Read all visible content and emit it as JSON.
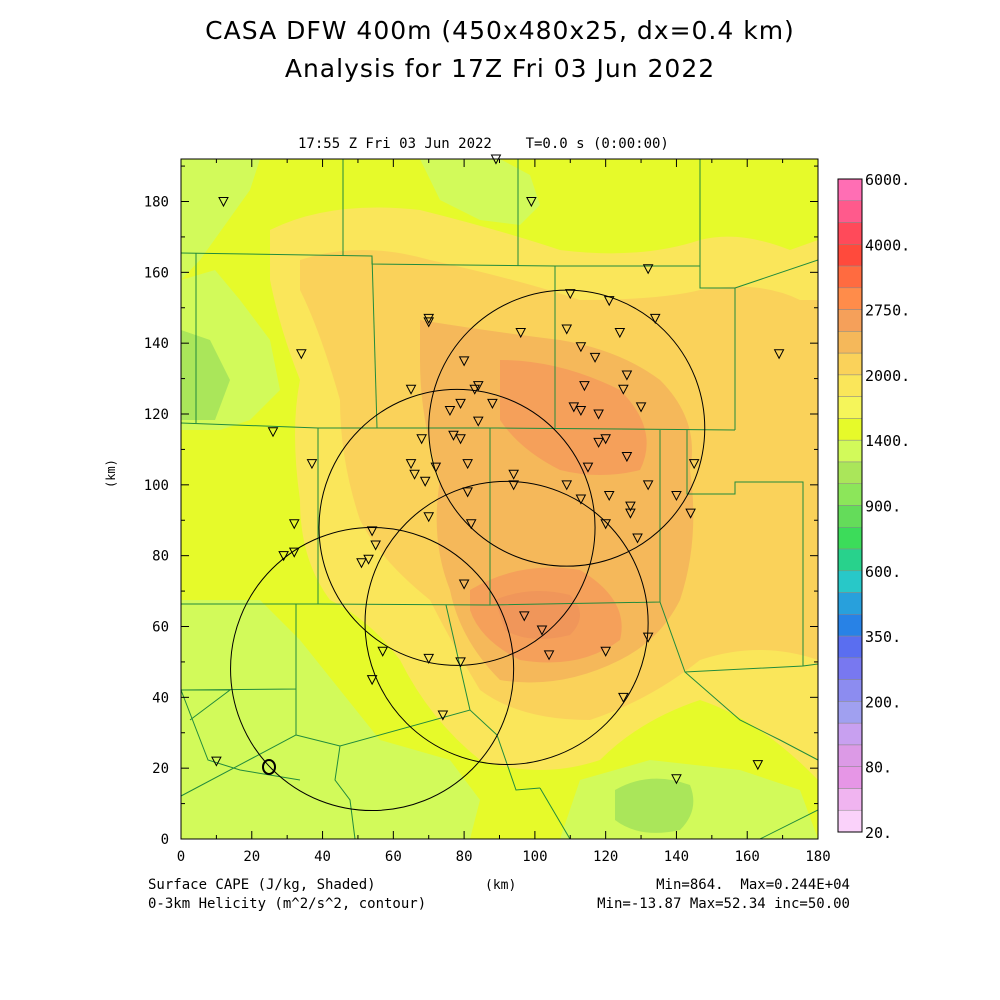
{
  "header": {
    "title_line1": "CASA DFW 400m (450x480x25, dx=0.4 km)",
    "title_line2": "Analysis for 17Z Fri 03 Jun 2022",
    "subtitle": "17:55 Z Fri 03 Jun 2022    T=0.0 s (0:00:00)"
  },
  "axes": {
    "x_ticks": [
      "0",
      "20",
      "40",
      "60",
      "80",
      "100",
      "120",
      "140",
      "160",
      "180"
    ],
    "y_ticks": [
      "0",
      "20",
      "40",
      "60",
      "80",
      "100",
      "120",
      "140",
      "160",
      "180"
    ],
    "x_unit": "(km)",
    "y_unit": "(km)",
    "xlim": [
      0,
      180
    ],
    "ylim": [
      0,
      192
    ]
  },
  "colorbar": {
    "labels": [
      "6000.",
      "4000.",
      "2750.",
      "2000.",
      "1400.",
      "900.",
      "600.",
      "350.",
      "200.",
      "80.",
      "20."
    ],
    "colors": [
      "#ff6eb4",
      "#ff5a8c",
      "#ff4a5a",
      "#ff4a3c",
      "#ff6b40",
      "#ff8c4a",
      "#f5a05a",
      "#f5b85a",
      "#fad25a",
      "#fae65a",
      "#f5f55a",
      "#e6fa2a",
      "#d2fa5a",
      "#aae65a",
      "#8ce65a",
      "#64dc5a",
      "#3cdc5a",
      "#28d28c",
      "#28c8c8",
      "#28a0dc",
      "#2882e6",
      "#5a6ef0",
      "#7878f0",
      "#8c8cf0",
      "#a0a0f0",
      "#c8a0f0",
      "#dc9ae6",
      "#e696e6",
      "#f0b4f0",
      "#fad2fa"
    ]
  },
  "footer": {
    "left1": "Surface CAPE (J/kg, Shaded)",
    "left2": "0-3km Helicity (m^2/s^2, contour)",
    "center": "(km)",
    "right1": "Min=864.  Max=0.244E+04",
    "right2": "Min=-13.87 Max=52.34 inc=50.00"
  },
  "map_data": {
    "radars": [
      {
        "cx": 109,
        "cy": 116,
        "r": 39
      },
      {
        "cx": 78,
        "cy": 88,
        "r": 39
      },
      {
        "cx": 92,
        "cy": 61,
        "r": 40
      },
      {
        "cx": 54,
        "cy": 48,
        "r": 40
      }
    ],
    "stations": [
      [
        12,
        180
      ],
      [
        89,
        192
      ],
      [
        99,
        180
      ],
      [
        132,
        161
      ],
      [
        110,
        154
      ],
      [
        121,
        152
      ],
      [
        70,
        147
      ],
      [
        70,
        146
      ],
      [
        134,
        147
      ],
      [
        96,
        143
      ],
      [
        109,
        144
      ],
      [
        124,
        143
      ],
      [
        113,
        139
      ],
      [
        34,
        137
      ],
      [
        80,
        135
      ],
      [
        117,
        136
      ],
      [
        169,
        137
      ],
      [
        126,
        131
      ],
      [
        84,
        128
      ],
      [
        83,
        127
      ],
      [
        114,
        128
      ],
      [
        65,
        127
      ],
      [
        125,
        127
      ],
      [
        79,
        123
      ],
      [
        88,
        123
      ],
      [
        111,
        122
      ],
      [
        76,
        121
      ],
      [
        113,
        121
      ],
      [
        130,
        122
      ],
      [
        84,
        118
      ],
      [
        118,
        120
      ],
      [
        26,
        115
      ],
      [
        68,
        113
      ],
      [
        77,
        114
      ],
      [
        79,
        113
      ],
      [
        118,
        112
      ],
      [
        120,
        113
      ],
      [
        37,
        106
      ],
      [
        65,
        106
      ],
      [
        72,
        105
      ],
      [
        81,
        106
      ],
      [
        126,
        108
      ],
      [
        145,
        106
      ],
      [
        66,
        103
      ],
      [
        115,
        105
      ],
      [
        69,
        101
      ],
      [
        94,
        103
      ],
      [
        109,
        100
      ],
      [
        132,
        100
      ],
      [
        94,
        100
      ],
      [
        81,
        98
      ],
      [
        121,
        97
      ],
      [
        140,
        97
      ],
      [
        113,
        96
      ],
      [
        127,
        94
      ],
      [
        70,
        91
      ],
      [
        127,
        92
      ],
      [
        82,
        89
      ],
      [
        120,
        89
      ],
      [
        144,
        92
      ],
      [
        32,
        89
      ],
      [
        54,
        87
      ],
      [
        129,
        85
      ],
      [
        55,
        83
      ],
      [
        32,
        81
      ],
      [
        29,
        80
      ],
      [
        53,
        79
      ],
      [
        51,
        78
      ],
      [
        80,
        72
      ],
      [
        97,
        63
      ],
      [
        102,
        59
      ],
      [
        132,
        57
      ],
      [
        57,
        53
      ],
      [
        70,
        51
      ],
      [
        79,
        50
      ],
      [
        104,
        52
      ],
      [
        120,
        53
      ],
      [
        54,
        45
      ],
      [
        125,
        40
      ],
      [
        74,
        35
      ],
      [
        10,
        22
      ],
      [
        163,
        21
      ],
      [
        140,
        17
      ]
    ],
    "cape_min": 864,
    "cape_max": 2440,
    "helicity_min": -13.87,
    "helicity_max": 52.34,
    "helicity_inc": 50.0
  }
}
